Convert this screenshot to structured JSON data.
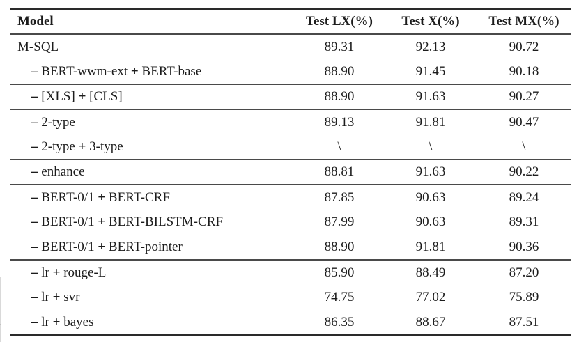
{
  "colors": {
    "background": "#ffffff",
    "text": "#1c1c1c",
    "rule": "#4a4a4a",
    "rule_heavy": "#2a2a2a"
  },
  "table": {
    "columns": [
      "Model",
      "Test LX(%)",
      "Test X(%)",
      "Test MX(%)"
    ],
    "groups": [
      {
        "rows": [
          {
            "model": "M-SQL",
            "indent": false,
            "values": [
              "89.31",
              "92.13",
              "90.72"
            ]
          },
          {
            "model": "– BERT-wwm-ext + BERT-base",
            "indent": true,
            "values": [
              "88.90",
              "91.45",
              "90.18"
            ]
          }
        ]
      },
      {
        "rows": [
          {
            "model": "– [XLS] + [CLS]",
            "indent": true,
            "values": [
              "88.90",
              "91.63",
              "90.27"
            ]
          }
        ]
      },
      {
        "rows": [
          {
            "model": "– 2-type",
            "indent": true,
            "values": [
              "89.13",
              "91.81",
              "90.47"
            ]
          },
          {
            "model": "– 2-type + 3-type",
            "indent": true,
            "values": [
              "\\",
              "\\",
              "\\"
            ]
          }
        ]
      },
      {
        "rows": [
          {
            "model": "– enhance",
            "indent": true,
            "values": [
              "88.81",
              "91.63",
              "90.22"
            ]
          }
        ]
      },
      {
        "rows": [
          {
            "model": "– BERT-0/1 + BERT-CRF",
            "indent": true,
            "values": [
              "87.85",
              "90.63",
              "89.24"
            ]
          },
          {
            "model": "– BERT-0/1 + BERT-BILSTM-CRF",
            "indent": true,
            "values": [
              "87.99",
              "90.63",
              "89.31"
            ]
          },
          {
            "model": "– BERT-0/1 + BERT-pointer",
            "indent": true,
            "values": [
              "88.90",
              "91.81",
              "90.36"
            ]
          }
        ]
      },
      {
        "rows": [
          {
            "model": "– lr + rouge-L",
            "indent": true,
            "values": [
              "85.90",
              "88.49",
              "87.20"
            ]
          },
          {
            "model": "– lr + svr",
            "indent": true,
            "values": [
              "74.75",
              "77.02",
              "75.89"
            ]
          },
          {
            "model": "– lr + bayes",
            "indent": true,
            "values": [
              "86.35",
              "88.67",
              "87.51"
            ]
          }
        ]
      }
    ]
  }
}
